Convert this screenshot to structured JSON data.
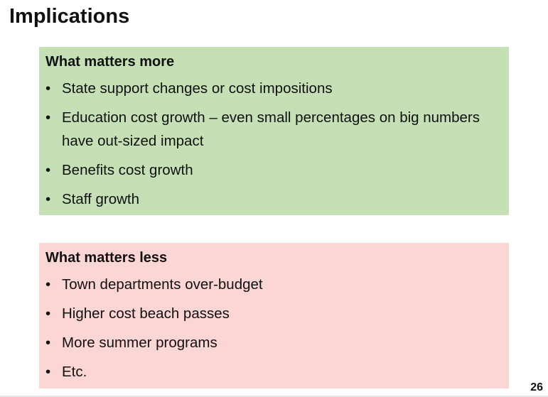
{
  "slide": {
    "title": "Implications",
    "page_number": "26"
  },
  "more": {
    "heading": "What matters more",
    "bullet": "•",
    "items": [
      "State support changes or cost impositions",
      "Education cost growth – even small percentages on big numbers have out-sized impact",
      "Benefits cost growth",
      "Staff growth"
    ],
    "color": "#c4e0b4"
  },
  "less": {
    "heading": "What matters less",
    "bullet": "•",
    "items": [
      "Town departments over-budget",
      "Higher cost beach passes",
      "More summer programs",
      "Etc."
    ],
    "color": "#fcd5d5"
  }
}
